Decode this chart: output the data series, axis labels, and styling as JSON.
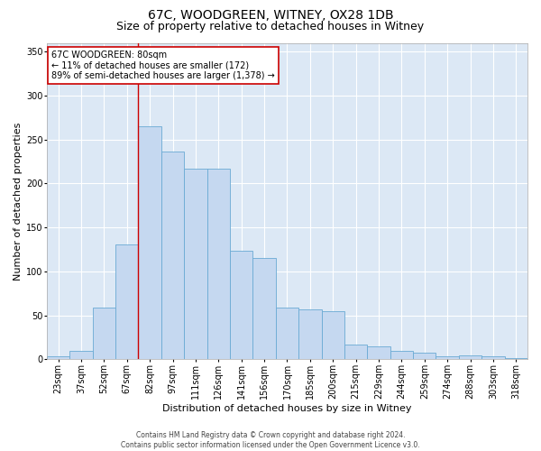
{
  "title": "67C, WOODGREEN, WITNEY, OX28 1DB",
  "subtitle": "Size of property relative to detached houses in Witney",
  "xlabel": "Distribution of detached houses by size in Witney",
  "ylabel": "Number of detached properties",
  "categories": [
    "23sqm",
    "37sqm",
    "52sqm",
    "67sqm",
    "82sqm",
    "97sqm",
    "111sqm",
    "126sqm",
    "141sqm",
    "156sqm",
    "170sqm",
    "185sqm",
    "200sqm",
    "215sqm",
    "229sqm",
    "244sqm",
    "259sqm",
    "274sqm",
    "288sqm",
    "303sqm",
    "318sqm"
  ],
  "values": [
    3,
    10,
    59,
    131,
    265,
    236,
    217,
    217,
    124,
    115,
    59,
    57,
    55,
    17,
    15,
    10,
    8,
    3,
    5,
    3,
    1
  ],
  "bar_color": "#c5d8f0",
  "bar_edge_color": "#6aaad4",
  "vline_x": 3.5,
  "annotation_text": "67C WOODGREEN: 80sqm\n← 11% of detached houses are smaller (172)\n89% of semi-detached houses are larger (1,378) →",
  "annotation_box_color": "#ffffff",
  "annotation_box_edge": "#cc0000",
  "vline_color": "#cc0000",
  "ylim": [
    0,
    360
  ],
  "yticks": [
    0,
    50,
    100,
    150,
    200,
    250,
    300,
    350
  ],
  "footer1": "Contains HM Land Registry data © Crown copyright and database right 2024.",
  "footer2": "Contains public sector information licensed under the Open Government Licence v3.0.",
  "background_color": "#dce8f5",
  "plot_bg_color": "#dce8f5",
  "grid_color": "#ffffff",
  "title_fontsize": 10,
  "subtitle_fontsize": 9,
  "axis_label_fontsize": 8,
  "tick_fontsize": 7,
  "annotation_fontsize": 7,
  "footer_fontsize": 5.5
}
